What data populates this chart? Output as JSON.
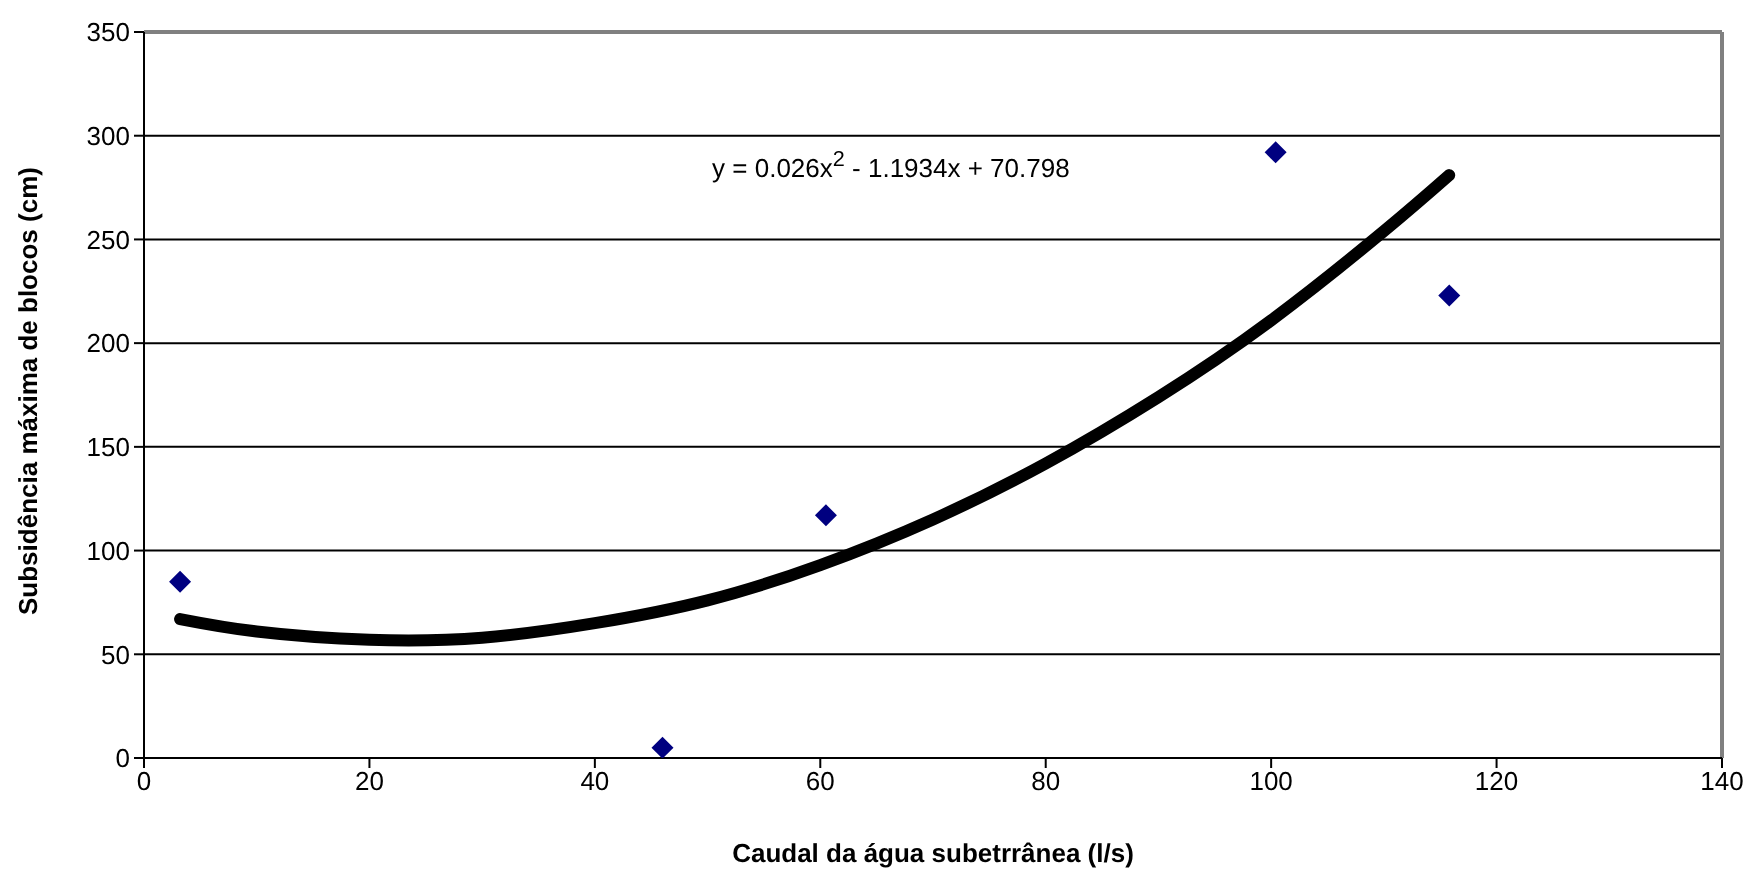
{
  "chart_data": {
    "type": "scatter",
    "xlabel": "Caudal da água subetrrânea (l/s)",
    "ylabel": "Subsidência máxima de blocos (cm)",
    "annotations": [
      "y = 0.026x$^{2}$ - 1.1934x + 70.798"
    ],
    "series": [
      {
        "color": "#000080",
        "marker": "diamond",
        "x": [
          3.2,
          46.0,
          60.5,
          100.4,
          115.8
        ],
        "values": [
          85,
          5,
          117,
          292,
          223
        ]
      },
      {
        "type": "line",
        "color": "#000000",
        "marker": "none",
        "x": [
          3.2,
          10,
          20,
          30,
          40,
          50,
          60,
          70,
          80,
          90,
          100,
          110,
          115.8
        ],
        "values": [
          67,
          61,
          57,
          58,
          65,
          76,
          93,
          115,
          142,
          174,
          211,
          254,
          281
        ]
      }
    ],
    "xlim": [
      0,
      140
    ],
    "xticks": [
      0,
      20,
      40,
      60,
      80,
      100,
      120,
      140
    ],
    "ylim": [
      0,
      350
    ],
    "yticks": [
      0,
      50,
      100,
      150,
      200,
      250,
      300,
      350
    ],
    "grid": "y"
  }
}
